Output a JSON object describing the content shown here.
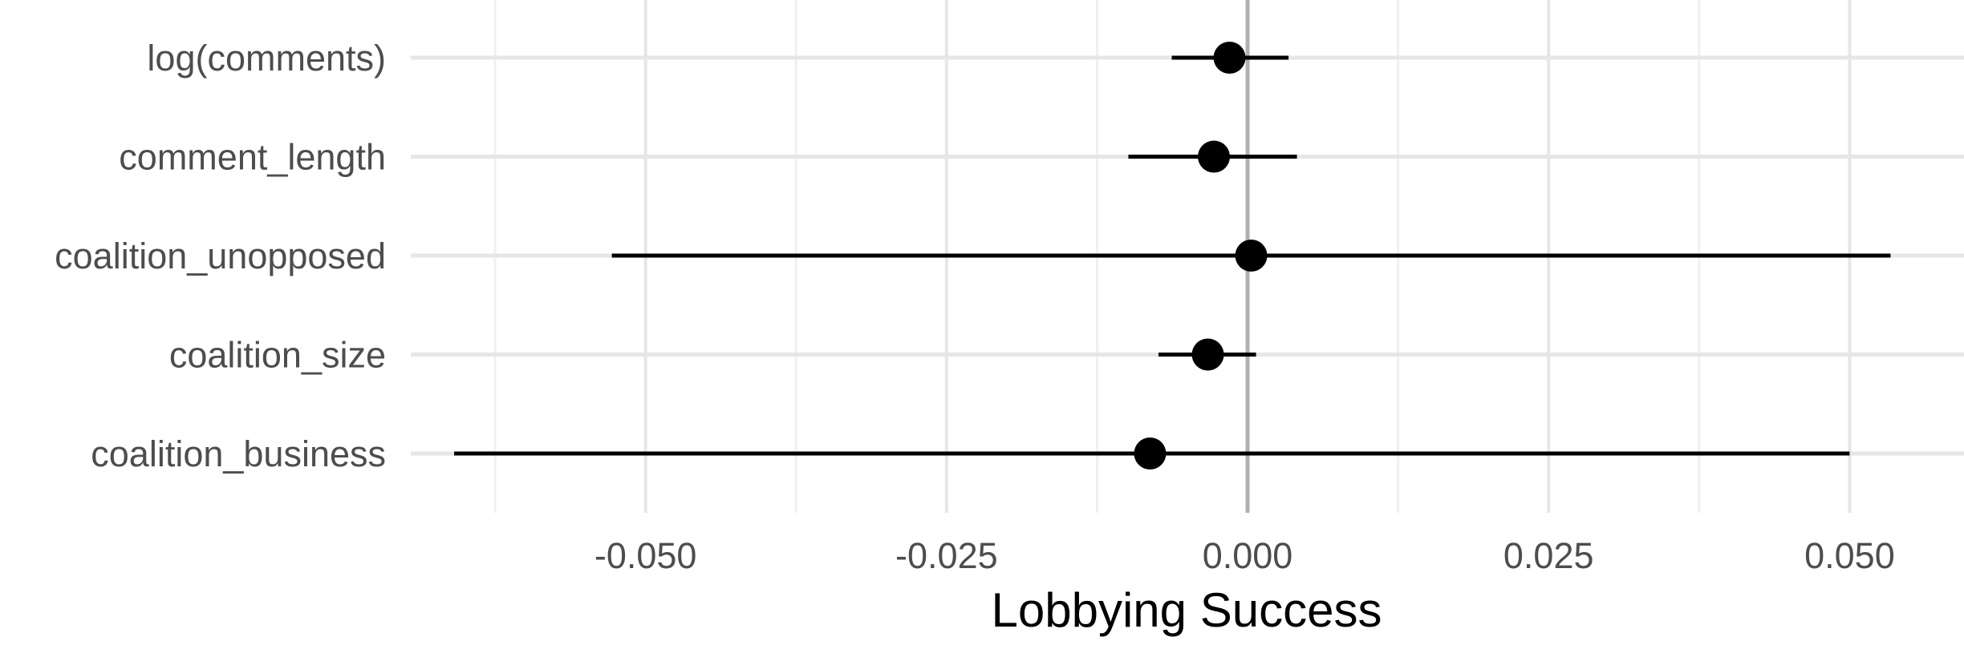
{
  "chart_data": {
    "type": "forest",
    "xlabel": "Lobbying Success",
    "ylabel": "",
    "xlim": [
      -0.0695,
      0.0595
    ],
    "x_ticks": [
      -0.05,
      -0.025,
      0.0,
      0.025,
      0.05
    ],
    "x_tick_labels": [
      "-0.050",
      "-0.025",
      "0.000",
      "0.025",
      "0.050"
    ],
    "x_minor_ticks": [
      -0.0625,
      -0.0375,
      -0.0125,
      0.0125,
      0.0375
    ],
    "reference_line": 0,
    "grid": true,
    "legend": "none",
    "categories": [
      "log(comments)",
      "comment_length",
      "coalition_unopposed",
      "coalition_size",
      "coalition_business"
    ],
    "estimates": [
      -0.0015,
      -0.0028,
      0.0003,
      -0.0033,
      -0.0081
    ],
    "ci_low": [
      -0.0063,
      -0.0099,
      -0.0528,
      -0.0074,
      -0.0659
    ],
    "ci_high": [
      0.0034,
      0.0041,
      0.0534,
      0.0007,
      0.05
    ],
    "colors": {
      "point": "#000000",
      "interval": "#000000",
      "grid_major": "#e6e6e6",
      "grid_minor": "#f0f0f0",
      "reference": "#b0b0b0"
    }
  }
}
